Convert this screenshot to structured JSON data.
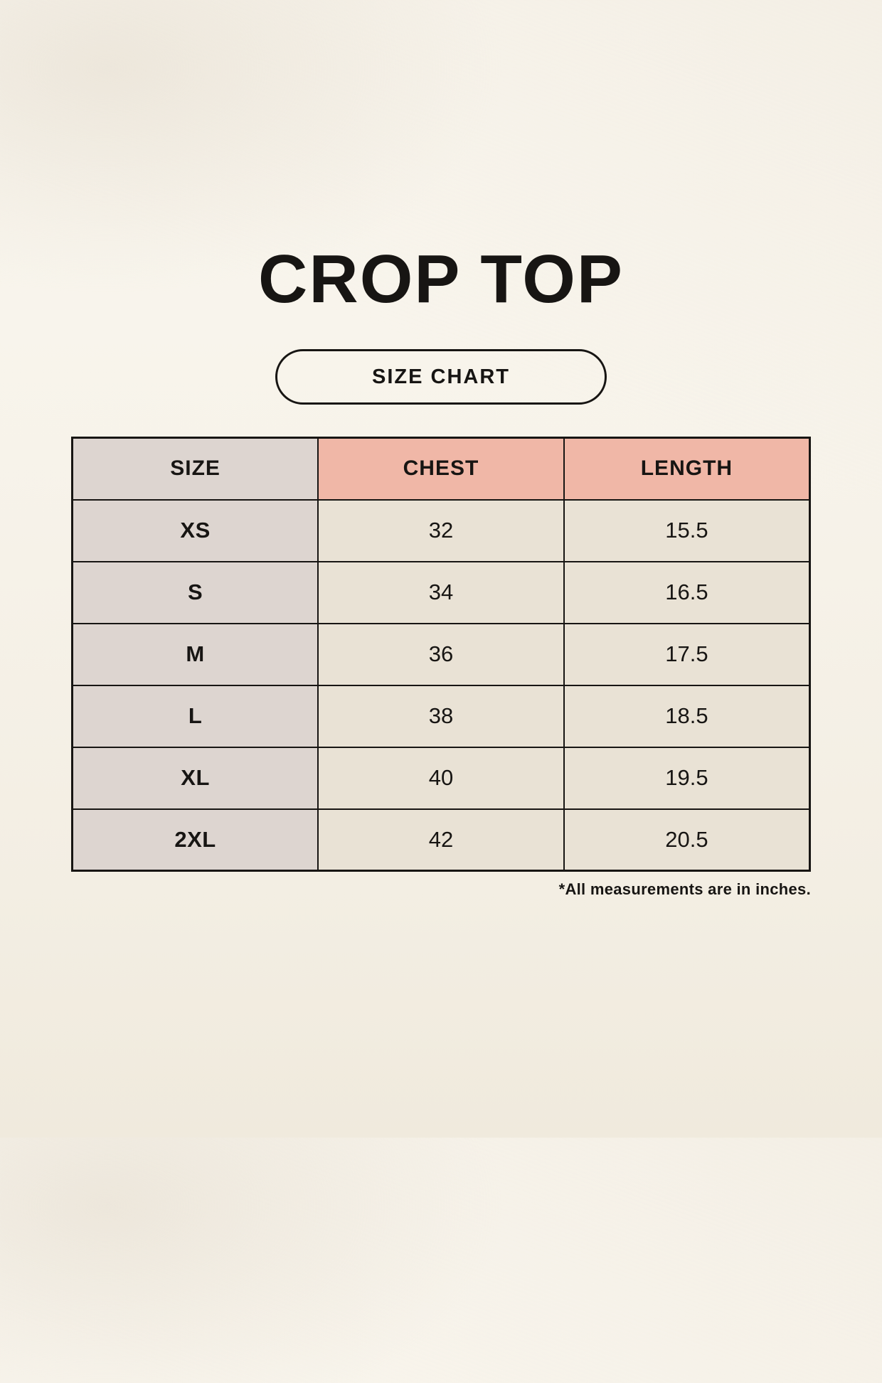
{
  "page": {
    "title": "CROP TOP",
    "badge_label": "SIZE CHART",
    "footnote": "*All measurements are in inches."
  },
  "colors": {
    "background": "#f6f2e9",
    "size_column_bg": "#ddd5d0",
    "header_accent_bg": "#f0b7a7",
    "cell_bg": "#e9e2d5",
    "border": "#171513",
    "text": "#171513"
  },
  "chart_data": {
    "type": "table",
    "title": "CROP TOP",
    "columns": [
      "SIZE",
      "CHEST",
      "LENGTH"
    ],
    "rows": [
      [
        "XS",
        "32",
        "15.5"
      ],
      [
        "S",
        "34",
        "16.5"
      ],
      [
        "M",
        "36",
        "17.5"
      ],
      [
        "L",
        "38",
        "18.5"
      ],
      [
        "XL",
        "40",
        "19.5"
      ],
      [
        "2XL",
        "42",
        "20.5"
      ]
    ],
    "units": "inches"
  }
}
